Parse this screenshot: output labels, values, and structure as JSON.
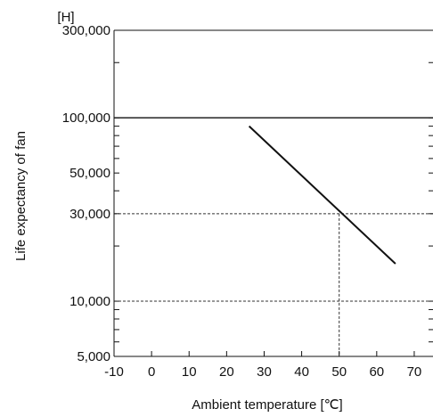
{
  "chart_data": {
    "type": "line",
    "title": "",
    "xlabel": "Ambient temperature [℃]",
    "ylabel": "Life expectancy of fan",
    "yunit": "[H]",
    "y_scale": "log",
    "xlim": [
      -10,
      75
    ],
    "ylim": [
      5000,
      300000
    ],
    "x_ticks": [
      -10,
      0,
      10,
      20,
      30,
      40,
      50,
      60,
      70
    ],
    "x_tick_labels": [
      "-10",
      "0",
      "10",
      "20",
      "30",
      "40",
      "50",
      "60",
      "70"
    ],
    "y_ticks": [
      5000,
      10000,
      30000,
      50000,
      100000,
      300000
    ],
    "y_tick_labels": [
      "5,000",
      "10,000",
      "30,000",
      "50,000",
      "100,000",
      "300,000"
    ],
    "grid": false,
    "reference_hlines": [
      10000,
      30000
    ],
    "reference_vlines": [
      50
    ],
    "solid_hlines": [
      100000
    ],
    "series": [
      {
        "x": [
          26,
          65
        ],
        "y": [
          90000,
          16000
        ]
      }
    ],
    "colors": {
      "line": "#111111",
      "axis": "#111111",
      "dashed": "#333333"
    }
  }
}
